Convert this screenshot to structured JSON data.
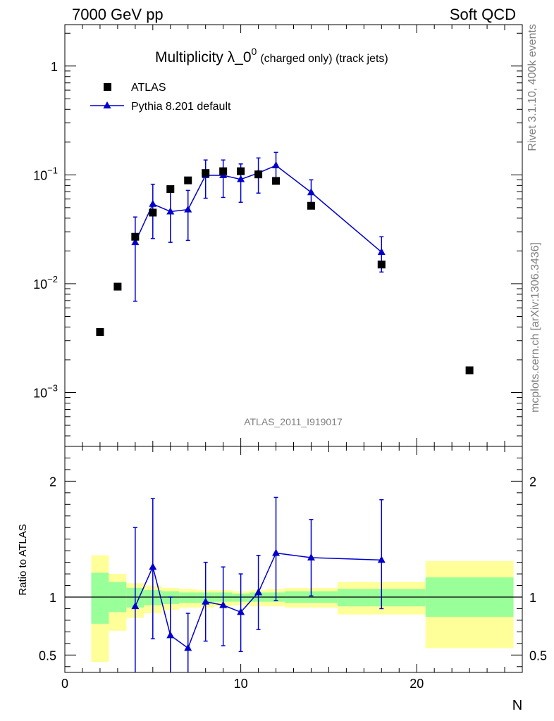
{
  "header": {
    "left": "7000 GeV pp",
    "right": "Soft QCD"
  },
  "title": {
    "main": "Multiplicity λ_0",
    "sup": "0",
    "sub": "(charged only) (track jets)"
  },
  "side_labels": {
    "rivet": "Rivet 3.1.10,  400k events",
    "mcplots": "mcplots.cern.ch [arXiv:1306.3436]"
  },
  "analysis_id": "ATLAS_2011_I919017",
  "legend": {
    "data_label": "ATLAS",
    "mc_label": "Pythia 8.201 default"
  },
  "colors": {
    "mc": "#0000cc",
    "data": "#000000",
    "band_inner": "#99ff99",
    "band_outer": "#ffff99"
  },
  "chart_data": [
    {
      "type": "scatter",
      "panel": "main",
      "xlabel": "N",
      "ylabel": "",
      "log_y": true,
      "xlim": [
        0,
        26
      ],
      "ylim": [
        0.00032,
        2.4
      ],
      "x_ticks": [
        "0",
        "10",
        "20"
      ],
      "y_ticks": [
        {
          "value": 1,
          "base": "1",
          "exp": ""
        },
        {
          "value": 0.1,
          "base": "10",
          "exp": "−1"
        },
        {
          "value": 0.01,
          "base": "10",
          "exp": "−2"
        },
        {
          "value": 0.001,
          "base": "10",
          "exp": "−3"
        }
      ],
      "legend_position": "top-left",
      "series": [
        {
          "name": "ATLAS",
          "kind": "data",
          "points": [
            {
              "x": 2,
              "y": 0.0036
            },
            {
              "x": 3,
              "y": 0.0094
            },
            {
              "x": 4,
              "y": 0.027
            },
            {
              "x": 5,
              "y": 0.045
            },
            {
              "x": 6,
              "y": 0.074
            },
            {
              "x": 7,
              "y": 0.089
            },
            {
              "x": 8,
              "y": 0.104
            },
            {
              "x": 9,
              "y": 0.108
            },
            {
              "x": 10,
              "y": 0.108
            },
            {
              "x": 11,
              "y": 0.101
            },
            {
              "x": 12,
              "y": 0.088
            },
            {
              "x": 14,
              "y": 0.052
            },
            {
              "x": 18,
              "y": 0.015
            },
            {
              "x": 23,
              "y": 0.0016
            }
          ]
        },
        {
          "name": "Pythia 8.201 default",
          "kind": "mc",
          "points": [
            {
              "x": 4,
              "y": 0.024,
              "ylo": 0.0069,
              "yhi": 0.041
            },
            {
              "x": 5,
              "y": 0.054,
              "ylo": 0.026,
              "yhi": 0.082
            },
            {
              "x": 6,
              "y": 0.046,
              "ylo": 0.024,
              "yhi": 0.069
            },
            {
              "x": 7,
              "y": 0.048,
              "ylo": 0.025,
              "yhi": 0.072
            },
            {
              "x": 8,
              "y": 0.099,
              "ylo": 0.061,
              "yhi": 0.137
            },
            {
              "x": 9,
              "y": 0.099,
              "ylo": 0.062,
              "yhi": 0.137
            },
            {
              "x": 10,
              "y": 0.091,
              "ylo": 0.056,
              "yhi": 0.126
            },
            {
              "x": 11,
              "y": 0.104,
              "ylo": 0.068,
              "yhi": 0.143
            },
            {
              "x": 12,
              "y": 0.122,
              "ylo": 0.087,
              "yhi": 0.161
            },
            {
              "x": 14,
              "y": 0.069,
              "ylo": 0.049,
              "yhi": 0.09
            },
            {
              "x": 18,
              "y": 0.0195,
              "ylo": 0.0128,
              "yhi": 0.027
            }
          ]
        }
      ]
    },
    {
      "type": "scatter",
      "panel": "ratio",
      "xlabel": "N",
      "ylabel": "Ratio to ATLAS",
      "xlim": [
        0,
        26
      ],
      "ylim": [
        0.35,
        2.3
      ],
      "x_ticks": [
        "0",
        "10",
        "20"
      ],
      "y_ticks": [
        "0.5",
        "1",
        "2"
      ],
      "bands": [
        {
          "xlo": 1.5,
          "xhi": 2.5,
          "inner": [
            0.77,
            1.21
          ],
          "outer": [
            0.44,
            1.36
          ]
        },
        {
          "xlo": 2.5,
          "xhi": 3.5,
          "inner": [
            0.87,
            1.13
          ],
          "outer": [
            0.71,
            1.2
          ]
        },
        {
          "xlo": 3.5,
          "xhi": 4.5,
          "inner": [
            0.91,
            1.08
          ],
          "outer": [
            0.82,
            1.12
          ]
        },
        {
          "xlo": 4.5,
          "xhi": 5.5,
          "inner": [
            0.93,
            1.06
          ],
          "outer": [
            0.86,
            1.1
          ]
        },
        {
          "xlo": 5.5,
          "xhi": 6.5,
          "inner": [
            0.94,
            1.05
          ],
          "outer": [
            0.89,
            1.08
          ]
        },
        {
          "xlo": 6.5,
          "xhi": 7.5,
          "inner": [
            0.95,
            1.04
          ],
          "outer": [
            0.91,
            1.07
          ]
        },
        {
          "xlo": 7.5,
          "xhi": 8.5,
          "inner": [
            0.95,
            1.04
          ],
          "outer": [
            0.91,
            1.06
          ]
        },
        {
          "xlo": 8.5,
          "xhi": 9.5,
          "inner": [
            0.96,
            1.04
          ],
          "outer": [
            0.92,
            1.06
          ]
        },
        {
          "xlo": 9.5,
          "xhi": 10.5,
          "inner": [
            0.96,
            1.03
          ],
          "outer": [
            0.93,
            1.05
          ]
        },
        {
          "xlo": 10.5,
          "xhi": 11.5,
          "inner": [
            0.96,
            1.04
          ],
          "outer": [
            0.92,
            1.06
          ]
        },
        {
          "xlo": 11.5,
          "xhi": 12.5,
          "inner": [
            0.96,
            1.04
          ],
          "outer": [
            0.92,
            1.07
          ]
        },
        {
          "xlo": 12.5,
          "xhi": 15.5,
          "inner": [
            0.95,
            1.05
          ],
          "outer": [
            0.91,
            1.08
          ]
        },
        {
          "xlo": 15.5,
          "xhi": 20.5,
          "inner": [
            0.92,
            1.07
          ],
          "outer": [
            0.85,
            1.13
          ]
        },
        {
          "xlo": 20.5,
          "xhi": 25.5,
          "inner": [
            0.83,
            1.17
          ],
          "outer": [
            0.56,
            1.31
          ]
        }
      ],
      "series": [
        {
          "name": "Pythia 8.201 default",
          "kind": "mc",
          "points": [
            {
              "x": 4,
              "y": 0.92,
              "ylo": 0.2,
              "yhi": 1.6
            },
            {
              "x": 5,
              "y": 1.26,
              "ylo": 0.64,
              "yhi": 1.85
            },
            {
              "x": 6,
              "y": 0.67,
              "ylo": 0.33,
              "yhi": 1.0
            },
            {
              "x": 7,
              "y": 0.56,
              "ylo": 0.27,
              "yhi": 0.86
            },
            {
              "x": 8,
              "y": 0.96,
              "ylo": 0.62,
              "yhi": 1.3
            },
            {
              "x": 9,
              "y": 0.93,
              "ylo": 0.58,
              "yhi": 1.26
            },
            {
              "x": 10,
              "y": 0.87,
              "ylo": 0.53,
              "yhi": 1.2
            },
            {
              "x": 11,
              "y": 1.04,
              "ylo": 0.72,
              "yhi": 1.36
            },
            {
              "x": 12,
              "y": 1.38,
              "ylo": 0.97,
              "yhi": 1.86
            },
            {
              "x": 14,
              "y": 1.34,
              "ylo": 1.01,
              "yhi": 1.67
            },
            {
              "x": 18,
              "y": 1.32,
              "ylo": 0.9,
              "yhi": 1.84
            }
          ]
        }
      ]
    }
  ]
}
